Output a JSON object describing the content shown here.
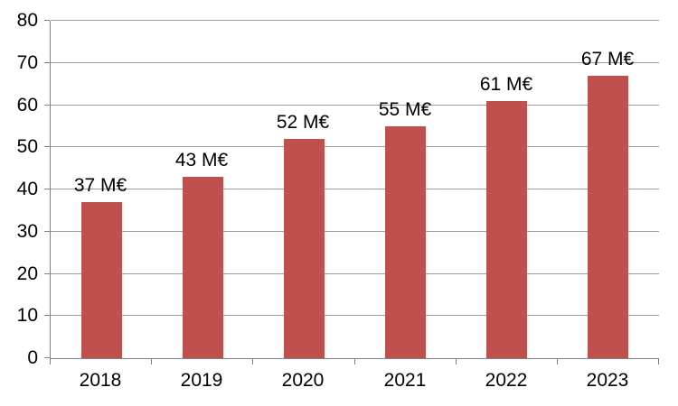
{
  "chart_data": {
    "type": "bar",
    "title": "",
    "xlabel": "",
    "ylabel": "",
    "categories": [
      "2018",
      "2019",
      "2020",
      "2021",
      "2022",
      "2023"
    ],
    "values": [
      37,
      43,
      52,
      55,
      61,
      67
    ],
    "data_labels": [
      "37 M€",
      "43 M€",
      "52 M€",
      "55 M€",
      "61 M€",
      "67 M€"
    ],
    "unit": "M€",
    "ylim": [
      0,
      80
    ],
    "y_tick_step": 10,
    "y_ticks": [
      "0",
      "10",
      "20",
      "30",
      "40",
      "50",
      "60",
      "70",
      "80"
    ],
    "grid": "horizontal",
    "legend_position": "none",
    "bar_color": "#C0504D",
    "gridline_color": "#9C9C9C",
    "axis_color": "#808080",
    "text_color": "#000000"
  }
}
